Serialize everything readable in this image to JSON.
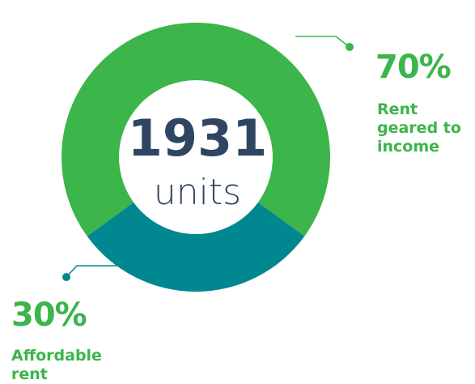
{
  "chart_data": {
    "type": "pie",
    "donut": true,
    "center_value": "1931",
    "center_label": "units",
    "categories": [
      "Rent geared to income",
      "Affordable rent"
    ],
    "values": [
      70,
      30
    ],
    "value_labels": [
      "70%",
      "30%"
    ],
    "colors": [
      "#3cb54a",
      "#00878f"
    ]
  }
}
